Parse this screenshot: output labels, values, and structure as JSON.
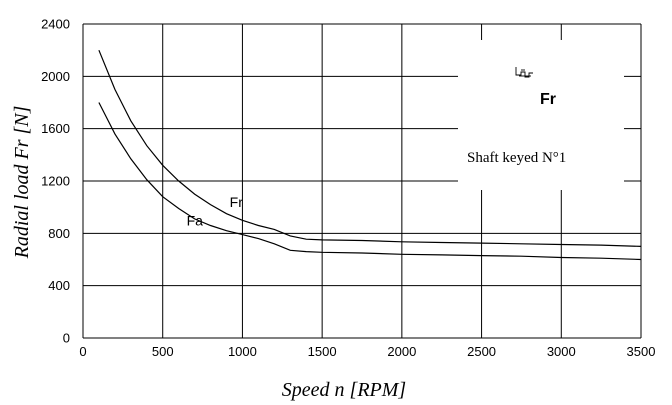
{
  "chart_data": {
    "type": "line",
    "xlabel": "Speed n [RPM]",
    "ylabel": "Radial load Fr [N]",
    "xlim": [
      0,
      3500
    ],
    "ylim": [
      0,
      2400
    ],
    "xticks": [
      "0",
      "500",
      "1000",
      "1500",
      "2000",
      "2500",
      "3000",
      "3500"
    ],
    "yticks": [
      "0",
      "400",
      "800",
      "1200",
      "1600",
      "2000",
      "2400"
    ],
    "grid": true,
    "series": [
      {
        "name": "Fr",
        "x": [
          100,
          200,
          300,
          400,
          500,
          600,
          700,
          800,
          900,
          1000,
          1100,
          1200,
          1300,
          1400,
          1500,
          1750,
          2000,
          2250,
          2500,
          2750,
          3000,
          3250,
          3500
        ],
        "y": [
          2200,
          1900,
          1660,
          1470,
          1320,
          1200,
          1100,
          1020,
          950,
          900,
          860,
          830,
          780,
          755,
          750,
          745,
          735,
          730,
          725,
          720,
          715,
          710,
          700
        ]
      },
      {
        "name": "Fa",
        "x": [
          100,
          200,
          300,
          400,
          500,
          600,
          700,
          800,
          900,
          1000,
          1100,
          1200,
          1300,
          1400,
          1500,
          1750,
          2000,
          2250,
          2500,
          2750,
          3000,
          3250,
          3500
        ],
        "y": [
          1800,
          1560,
          1370,
          1210,
          1080,
          990,
          910,
          860,
          820,
          790,
          760,
          720,
          670,
          660,
          655,
          650,
          640,
          635,
          630,
          625,
          615,
          610,
          600
        ]
      }
    ],
    "annotations": {
      "series_labels": [
        {
          "text": "Fr",
          "x": 920,
          "y": 1000
        },
        {
          "text": "Fa",
          "x": 650,
          "y": 860
        }
      ],
      "inset_label": "Fr",
      "inset_caption": "Shaft keyed N°1"
    }
  }
}
